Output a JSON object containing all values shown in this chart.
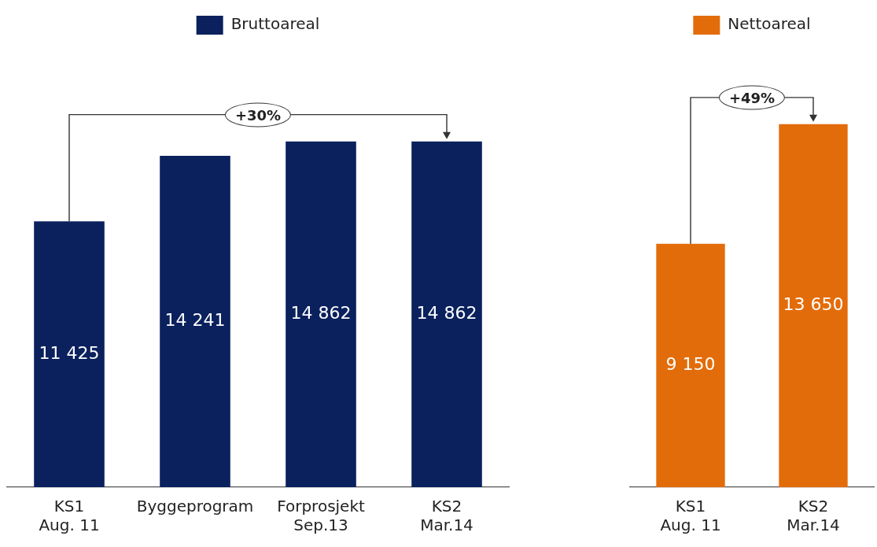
{
  "chart_data": [
    {
      "type": "bar",
      "categories": [
        "KS1\nAug. 11",
        "Byggeprogram",
        "Forprosjekt\nSep.13",
        "KS2\nMar.14"
      ],
      "series": [
        {
          "name": "Bruttoareal",
          "color": "#0b215e",
          "values": [
            11425,
            14241,
            14862,
            14862
          ],
          "value_labels": [
            "11 425",
            "14 241",
            "14 862",
            "14 862"
          ]
        }
      ],
      "annotations": [
        "+30%"
      ],
      "legend": "top",
      "grid": false
    },
    {
      "type": "bar",
      "categories": [
        "KS1\nAug. 11",
        "KS2\nMar.14"
      ],
      "series": [
        {
          "name": "Nettoareal",
          "color": "#e36c0a",
          "values": [
            9150,
            13650
          ],
          "value_labels": [
            "9 150",
            "13 650"
          ]
        }
      ],
      "annotations": [
        "+49%"
      ],
      "legend": "top",
      "grid": false
    }
  ]
}
